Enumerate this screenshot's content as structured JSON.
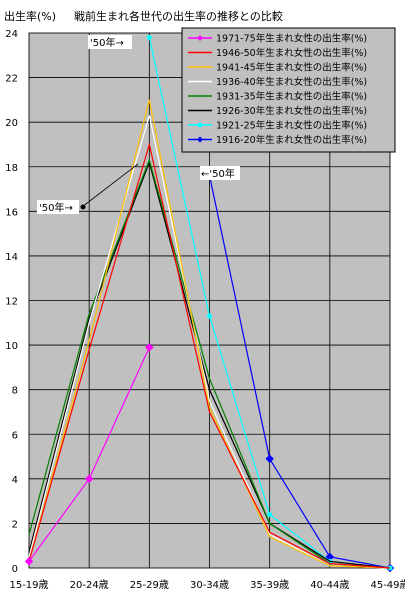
{
  "chart_data": {
    "type": "line",
    "title": "戦前生まれ各世代の出生率の推移との比較",
    "ylabel": "出生率(%)",
    "xlabel": "",
    "categories": [
      "15-19歳",
      "20-24歳",
      "25-29歳",
      "30-34歳",
      "35-39歳",
      "40-44歳",
      "45-49歳"
    ],
    "ylim": [
      0,
      24
    ],
    "yticks": [
      0,
      2,
      4,
      6,
      8,
      10,
      12,
      14,
      16,
      18,
      20,
      22,
      24
    ],
    "grid": true,
    "legend_position": "top-right",
    "series": [
      {
        "name": "1971-75年生まれ女性の出生率(%)",
        "color": "#ff00ff",
        "marker": "diamond",
        "values": [
          0.3,
          4.0,
          9.9,
          null,
          null,
          null,
          null
        ]
      },
      {
        "name": "1946-50年生まれ女性の出生率(%)",
        "color": "#ff0000",
        "marker": "none",
        "values": [
          0.3,
          9.8,
          19.0,
          7.0,
          1.6,
          0.2,
          0.0
        ]
      },
      {
        "name": "1941-45年生まれ女性の出生率(%)",
        "color": "#ffc000",
        "marker": "none",
        "values": [
          0.3,
          10.2,
          21.0,
          7.2,
          1.4,
          0.1,
          0.0
        ]
      },
      {
        "name": "1936-40年生まれ女性の出生率(%)",
        "color": "#ffffff",
        "marker": "none",
        "values": [
          0.5,
          11.0,
          20.3,
          7.5,
          1.5,
          0.1,
          0.0
        ]
      },
      {
        "name": "1931-35年生まれ女性の出生率(%)",
        "color": "#008000",
        "marker": "none",
        "values": [
          1.5,
          11.4,
          18.3,
          8.5,
          2.0,
          0.2,
          0.0
        ]
      },
      {
        "name": "1926-30年生まれ女性の出生率(%)",
        "color": "#000000",
        "marker": "none",
        "values": [
          0.7,
          11.2,
          18.2,
          8.0,
          2.0,
          0.3,
          0.0
        ]
      },
      {
        "name": "1921-25年生まれ女性の出生率(%)",
        "color": "#00ffff",
        "marker": "circle",
        "values": [
          null,
          null,
          23.8,
          11.3,
          2.4,
          0.3,
          0.0
        ]
      },
      {
        "name": "1916-20年生まれ女性の出生率(%)",
        "color": "#0000ff",
        "marker": "diamond",
        "values": [
          null,
          null,
          null,
          17.6,
          4.9,
          0.5,
          0.0
        ]
      }
    ],
    "annotations": [
      {
        "text": "'50年→"
      },
      {
        "text": "'50年→"
      },
      {
        "text": "←'50年"
      }
    ]
  },
  "colors": {
    "plot_background": "#c0c0c0",
    "grid": "#000000",
    "legend_background": "#c0c0c0"
  }
}
